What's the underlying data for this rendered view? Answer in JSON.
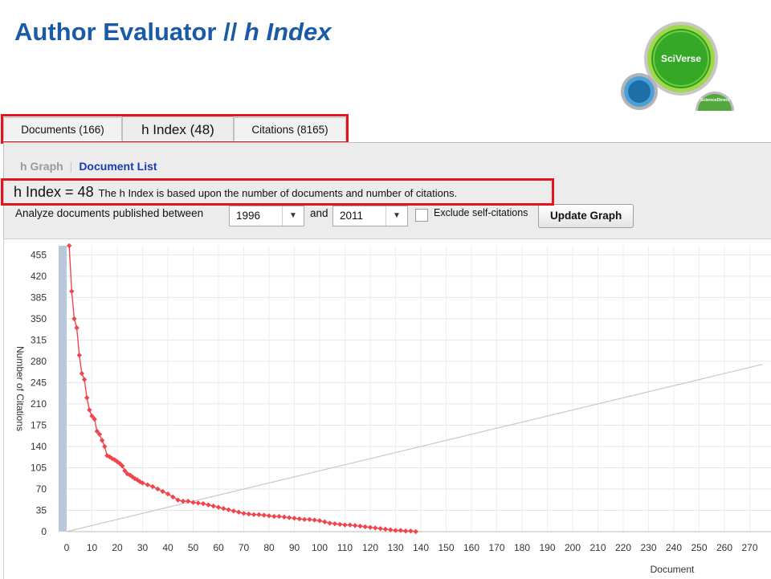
{
  "slide": {
    "title_main": "Author Evaluator // ",
    "title_italic": "h Index"
  },
  "logo": {
    "brand": "SciVerse",
    "sub": "ScienceDirect",
    "colors": {
      "green": "#2e9b1e",
      "blue": "#1e6fa8"
    }
  },
  "tabs": [
    {
      "label": "Documents (166)",
      "active": false
    },
    {
      "label": "h Index (48)",
      "active": true
    },
    {
      "label": "Citations (8165)",
      "active": false
    }
  ],
  "subnav": {
    "items": [
      "h Graph",
      "Document List"
    ],
    "active_index": 1
  },
  "hindex": {
    "value_label": "h Index = 48",
    "description": "The h Index is based upon the number of documents and number of citations."
  },
  "filters": {
    "prefix": "Analyze documents published between",
    "start_year": "1996",
    "conjunction": "and",
    "end_year": "2011",
    "exclude_label": "Exclude self-citations",
    "exclude_checked": false,
    "update_button": "Update Graph"
  },
  "accent_color": "#e0161e",
  "chart_data": {
    "type": "scatter",
    "xlabel": "Document",
    "ylabel": "Number of Citations",
    "xlim": [
      0,
      275
    ],
    "ylim": [
      0,
      470
    ],
    "x_ticks": [
      0,
      10,
      20,
      30,
      40,
      50,
      60,
      70,
      80,
      90,
      100,
      110,
      120,
      130,
      140,
      150,
      160,
      170,
      180,
      190,
      200,
      210,
      220,
      230,
      240,
      250,
      260,
      270
    ],
    "y_ticks": [
      0,
      35,
      70,
      105,
      140,
      175,
      210,
      245,
      280,
      315,
      350,
      385,
      420,
      455
    ],
    "grid": true,
    "series": [
      {
        "color": "#f0454c",
        "x": [
          1,
          2,
          3,
          4,
          5,
          6,
          7,
          8,
          9,
          10,
          11,
          12,
          13,
          14,
          15,
          16,
          17,
          18,
          19,
          20,
          21,
          22,
          23,
          24,
          25,
          26,
          27,
          28,
          29,
          30,
          32,
          34,
          36,
          38,
          40,
          42,
          44,
          46,
          48,
          50,
          52,
          54,
          56,
          58,
          60,
          62,
          64,
          66,
          68,
          70,
          72,
          74,
          76,
          78,
          80,
          82,
          84,
          86,
          88,
          90,
          92,
          94,
          96,
          98,
          100,
          102,
          104,
          106,
          108,
          110,
          112,
          114,
          116,
          118,
          120,
          122,
          124,
          126,
          128,
          130,
          132,
          134,
          136,
          138
        ],
        "y": [
          470,
          395,
          350,
          335,
          290,
          260,
          250,
          220,
          200,
          190,
          185,
          165,
          160,
          150,
          140,
          125,
          123,
          120,
          118,
          115,
          112,
          108,
          100,
          95,
          93,
          90,
          87,
          85,
          82,
          80,
          77,
          74,
          70,
          66,
          62,
          57,
          52,
          50,
          50,
          48,
          47,
          46,
          44,
          42,
          40,
          38,
          36,
          34,
          32,
          30,
          29,
          28,
          28,
          27,
          26,
          25,
          25,
          24,
          23,
          22,
          21,
          20,
          20,
          19,
          18,
          16,
          14,
          13,
          12,
          11,
          11,
          10,
          9,
          8,
          7,
          6,
          5,
          4,
          3,
          2,
          2,
          1,
          1,
          0
        ]
      },
      {
        "color": "#c8c8c8",
        "x": [
          0,
          275
        ],
        "y": [
          0,
          275
        ]
      }
    ]
  }
}
